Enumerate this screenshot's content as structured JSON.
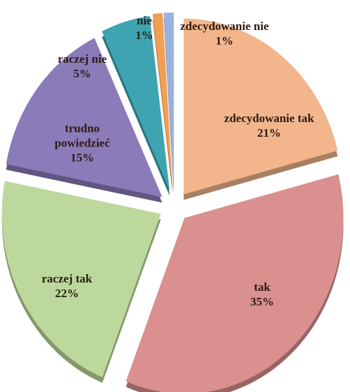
{
  "chart_data": {
    "type": "pie",
    "categories": [
      "zdecydowanie tak",
      "tak",
      "raczej tak",
      "trudno powiedzieć",
      "raczej nie",
      "nie",
      "zdecydowanie nie"
    ],
    "values": [
      21,
      35,
      22,
      15,
      5,
      1,
      1
    ],
    "value_labels": [
      "21%",
      "35%",
      "22%",
      "15%",
      "5%",
      "1%",
      "1%"
    ],
    "colors": [
      "#f2b58c",
      "#d9908f",
      "#bcd89c",
      "#8b7bb9",
      "#3fa4b1",
      "#f0a052",
      "#9bb1dd"
    ]
  }
}
